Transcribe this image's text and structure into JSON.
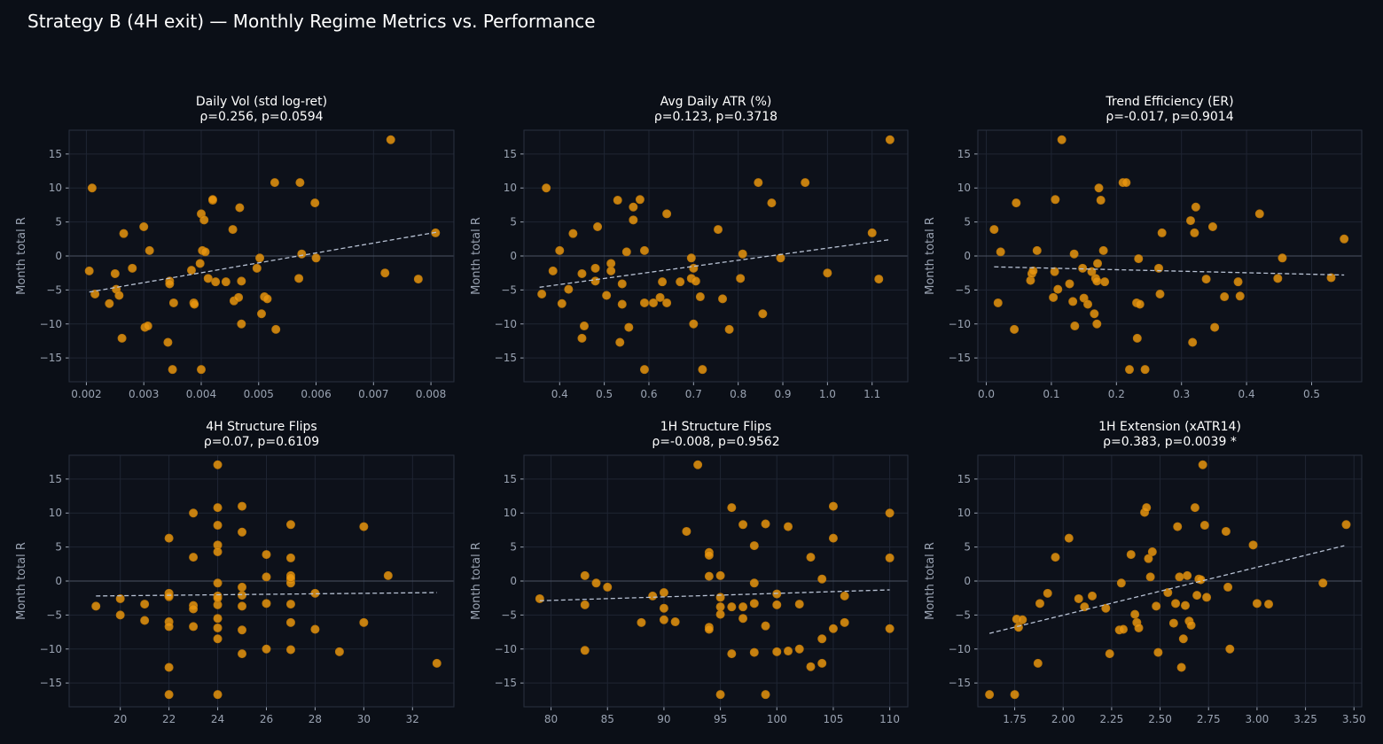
{
  "suptitle": "Strategy B (4H exit) — Monthly Regime Metrics vs. Performance",
  "colors": {
    "background": "#0b0f17",
    "axes_face": "#0d111a",
    "grid": "#1f2533",
    "spine": "#2a3140",
    "tick_text": "#9aa3b2",
    "title_text": "#ffffff",
    "point": "#e8950f",
    "trend_line": "#b8c2d4",
    "zero_line": "#4a5262"
  },
  "chart_data": [
    {
      "type": "scatter",
      "title": "Daily Vol (std log-ret)",
      "subtitle": "ρ=0.256, p=0.0594",
      "xlabel": "",
      "ylabel": "Month total R",
      "xlim": [
        0.0017,
        0.0084
      ],
      "ylim": [
        -18.5,
        18.5
      ],
      "xticks": [
        0.002,
        0.003,
        0.004,
        0.005,
        0.006,
        0.007,
        0.008
      ],
      "xtick_labels": [
        "0.002",
        "0.003",
        "0.004",
        "0.005",
        "0.006",
        "0.007",
        "0.008"
      ],
      "yticks": [
        -15,
        -10,
        -5,
        0,
        5,
        10,
        15
      ],
      "ytick_labels": [
        "−15",
        "−10",
        "−5",
        "0",
        "5",
        "10",
        "15"
      ],
      "trend_line": {
        "x": [
          0.00205,
          0.0081
        ],
        "y": [
          -5.3,
          3.5
        ]
      },
      "x": [
        0.0021,
        0.00205,
        0.00215,
        0.0024,
        0.0025,
        0.00252,
        0.00257,
        0.00262,
        0.00265,
        0.0028,
        0.003,
        0.00302,
        0.00307,
        0.0031,
        0.00342,
        0.00345,
        0.00345,
        0.0035,
        0.00352,
        0.00383,
        0.00387,
        0.00388,
        0.00398,
        0.004,
        0.004,
        0.00402,
        0.00405,
        0.00407,
        0.00412,
        0.0042,
        0.0042,
        0.00425,
        0.00443,
        0.00455,
        0.00457,
        0.00465,
        0.00467,
        0.0047,
        0.0047,
        0.00497,
        0.00502,
        0.00505,
        0.0051,
        0.00515,
        0.00528,
        0.0053,
        0.0057,
        0.00572,
        0.00575,
        0.00598,
        0.006,
        0.0072,
        0.0073,
        0.00778,
        0.00808
      ],
      "y": [
        10,
        -2.2,
        -5.6,
        -7,
        -2.6,
        -4.9,
        -5.8,
        -12.1,
        3.3,
        -1.8,
        4.3,
        -10.5,
        -10.3,
        0.8,
        -12.7,
        -3.7,
        -4.1,
        -16.7,
        -6.9,
        -2.1,
        -6.9,
        -7.1,
        -1.1,
        -16.7,
        6.2,
        0.8,
        5.3,
        0.6,
        -3.3,
        8.2,
        8.3,
        -3.8,
        -3.8,
        3.9,
        -6.6,
        -6.1,
        7.1,
        -10,
        -3.7,
        -1.8,
        -0.3,
        -8.5,
        -6,
        -6.3,
        10.8,
        -10.8,
        -3.3,
        10.8,
        0.3,
        7.8,
        -0.3,
        -2.5,
        17.1,
        -3.4,
        3.4
      ]
    },
    {
      "type": "scatter",
      "title": "Avg Daily ATR (%)",
      "subtitle": "ρ=0.123, p=0.3718",
      "xlabel": "",
      "ylabel": "Month total R",
      "xlim": [
        0.32,
        1.18
      ],
      "ylim": [
        -18.5,
        18.5
      ],
      "xticks": [
        0.4,
        0.5,
        0.6,
        0.7,
        0.8,
        0.9,
        1.0,
        1.1
      ],
      "xtick_labels": [
        "0.4",
        "0.5",
        "0.6",
        "0.7",
        "0.8",
        "0.9",
        "1.0",
        "1.1"
      ],
      "yticks": [
        -15,
        -10,
        -5,
        0,
        5,
        10,
        15
      ],
      "ytick_labels": [
        "−15",
        "−10",
        "−5",
        "0",
        "5",
        "10",
        "15"
      ],
      "trend_line": {
        "x": [
          0.355,
          1.14
        ],
        "y": [
          -4.6,
          2.4
        ]
      },
      "x": [
        0.36,
        0.37,
        0.385,
        0.4,
        0.405,
        0.42,
        0.43,
        0.45,
        0.45,
        0.455,
        0.48,
        0.48,
        0.485,
        0.505,
        0.515,
        0.515,
        0.53,
        0.535,
        0.54,
        0.54,
        0.55,
        0.555,
        0.565,
        0.565,
        0.58,
        0.59,
        0.59,
        0.59,
        0.61,
        0.625,
        0.63,
        0.64,
        0.64,
        0.67,
        0.695,
        0.695,
        0.7,
        0.7,
        0.705,
        0.715,
        0.72,
        0.755,
        0.765,
        0.78,
        0.805,
        0.81,
        0.845,
        0.855,
        0.875,
        0.895,
        0.95,
        1.0,
        1.1,
        1.115,
        1.14
      ],
      "y": [
        -5.6,
        10,
        -2.2,
        0.8,
        -7,
        -4.9,
        3.3,
        -12.1,
        -2.6,
        -10.3,
        -1.8,
        -3.7,
        4.3,
        -5.8,
        -1.1,
        -2.2,
        8.2,
        -12.7,
        -7.1,
        -4.1,
        0.6,
        -10.5,
        5.3,
        7.2,
        8.3,
        0.8,
        -6.9,
        -16.7,
        -6.9,
        -6.1,
        -3.8,
        -6.9,
        6.2,
        -3.8,
        -0.3,
        -3.3,
        -10,
        -1.8,
        -3.7,
        -6,
        -16.7,
        3.9,
        -6.3,
        -10.8,
        -3.3,
        0.3,
        10.8,
        -8.5,
        7.8,
        -0.3,
        10.8,
        -2.5,
        3.4,
        -3.4,
        17.1
      ]
    },
    {
      "type": "scatter",
      "title": "Trend Efficiency (ER)",
      "subtitle": "ρ=-0.017, p=0.9014",
      "xlabel": "",
      "ylabel": "Month total R",
      "xlim": [
        -0.013,
        0.577
      ],
      "ylim": [
        -18.5,
        18.5
      ],
      "xticks": [
        0.0,
        0.1,
        0.2,
        0.3,
        0.4,
        0.5
      ],
      "xtick_labels": [
        "0.0",
        "0.1",
        "0.2",
        "0.3",
        "0.4",
        "0.5"
      ],
      "yticks": [
        -15,
        -10,
        -5,
        0,
        5,
        10,
        15
      ],
      "ytick_labels": [
        "−15",
        "−10",
        "−5",
        "0",
        "5",
        "10",
        "15"
      ],
      "trend_line": {
        "x": [
          0.012,
          0.55
        ],
        "y": [
          -1.6,
          -2.8
        ]
      },
      "x": [
        0.012,
        0.018,
        0.022,
        0.043,
        0.046,
        0.068,
        0.07,
        0.072,
        0.078,
        0.103,
        0.105,
        0.106,
        0.11,
        0.116,
        0.128,
        0.133,
        0.135,
        0.136,
        0.148,
        0.15,
        0.156,
        0.162,
        0.166,
        0.168,
        0.17,
        0.17,
        0.171,
        0.173,
        0.176,
        0.18,
        0.182,
        0.21,
        0.215,
        0.22,
        0.231,
        0.232,
        0.234,
        0.236,
        0.244,
        0.265,
        0.267,
        0.27,
        0.314,
        0.317,
        0.32,
        0.322,
        0.338,
        0.348,
        0.351,
        0.366,
        0.387,
        0.39,
        0.42,
        0.448,
        0.455,
        0.53,
        0.55
      ],
      "y": [
        3.9,
        -6.9,
        0.6,
        -10.8,
        7.8,
        -3.6,
        -2.6,
        -2.2,
        0.8,
        -6.1,
        -2.3,
        8.3,
        -4.9,
        17.1,
        -4.1,
        -6.7,
        0.3,
        -10.3,
        -1.8,
        -6.2,
        -7.1,
        -2.3,
        -8.5,
        -3.3,
        -10,
        -3.7,
        -1.1,
        10,
        8.2,
        0.8,
        -3.8,
        10.8,
        10.8,
        -16.7,
        -6.9,
        -12.1,
        -0.4,
        -7.1,
        -16.7,
        -1.8,
        -5.6,
        3.4,
        5.2,
        -12.7,
        3.4,
        7.2,
        -3.4,
        4.3,
        -10.5,
        -6,
        -3.8,
        -5.9,
        6.2,
        -3.3,
        -0.3,
        -3.2,
        2.5
      ]
    },
    {
      "type": "scatter",
      "title": "4H Structure Flips",
      "subtitle": "ρ=0.07, p=0.6109",
      "xlabel": "",
      "ylabel": "Month total R",
      "xlim": [
        17.9,
        33.7
      ],
      "ylim": [
        -18.5,
        18.5
      ],
      "xticks": [
        20,
        22,
        24,
        26,
        28,
        30,
        32
      ],
      "xtick_labels": [
        "20",
        "22",
        "24",
        "26",
        "28",
        "30",
        "32"
      ],
      "yticks": [
        -15,
        -10,
        -5,
        0,
        5,
        10,
        15
      ],
      "ytick_labels": [
        "−15",
        "−10",
        "−5",
        "0",
        "5",
        "10",
        "15"
      ],
      "trend_line": {
        "x": [
          19,
          33
        ],
        "y": [
          -2.2,
          -1.7
        ]
      },
      "x": [
        19,
        20,
        20,
        21,
        21,
        22,
        22,
        22,
        22,
        22,
        22,
        22,
        22,
        23,
        23,
        23,
        23,
        23,
        24,
        24,
        24,
        24,
        24,
        24,
        24,
        24,
        24,
        24,
        24,
        24,
        24,
        25,
        25,
        25,
        25,
        25,
        25,
        25,
        26,
        26,
        26,
        26,
        27,
        27,
        27,
        27,
        27,
        27,
        27,
        27,
        27,
        28,
        28,
        29,
        30,
        30,
        31,
        33
      ],
      "y": [
        -3.7,
        -5,
        -2.6,
        -3.4,
        -5.8,
        6.3,
        -1.8,
        -2.3,
        -6,
        -6.7,
        -12.7,
        -16.7,
        -2.2,
        10,
        3.5,
        -3.6,
        -4.1,
        -6.7,
        17.1,
        10.8,
        8.2,
        5.3,
        4.3,
        -0.3,
        -2.2,
        -3.5,
        -5.5,
        -6.9,
        -8.5,
        -16.7,
        -2.5,
        11,
        7.2,
        -0.9,
        -2.1,
        -3.7,
        -7.2,
        -10.7,
        3.9,
        0.6,
        -3.3,
        -10,
        8.3,
        3.4,
        0.8,
        0.3,
        -0.3,
        -3.4,
        -6.1,
        -10.1,
        0.5,
        -1.8,
        -7.1,
        -10.4,
        8,
        -6.1,
        0.8,
        -12.1
      ]
    },
    {
      "type": "scatter",
      "title": "1H Structure Flips",
      "subtitle": "ρ=-0.008, p=0.9562",
      "xlabel": "",
      "ylabel": "Month total R",
      "xlim": [
        77.6,
        111.6
      ],
      "ylim": [
        -18.5,
        18.5
      ],
      "xticks": [
        80,
        85,
        90,
        95,
        100,
        105,
        110
      ],
      "xtick_labels": [
        "80",
        "85",
        "90",
        "95",
        "100",
        "105",
        "110"
      ],
      "yticks": [
        -15,
        -10,
        -5,
        0,
        5,
        10,
        15
      ],
      "ytick_labels": [
        "−15",
        "−10",
        "−5",
        "0",
        "5",
        "10",
        "15"
      ],
      "trend_line": {
        "x": [
          79,
          110
        ],
        "y": [
          -2.9,
          -1.3
        ]
      },
      "x": [
        79,
        83,
        83,
        83,
        84,
        85,
        88,
        89,
        90,
        90,
        90,
        91,
        92,
        93,
        94,
        94,
        94,
        94,
        94,
        95,
        95,
        95,
        95,
        95,
        96,
        96,
        96,
        97,
        97,
        97,
        98,
        98,
        98,
        98,
        99,
        99,
        99,
        100,
        100,
        100,
        101,
        101,
        102,
        102,
        103,
        103,
        104,
        104,
        104,
        105,
        105,
        105,
        106,
        106,
        110,
        110,
        110
      ],
      "y": [
        -2.6,
        0.8,
        -3.5,
        -10.2,
        -0.3,
        -0.9,
        -6.1,
        -2.2,
        -1.7,
        -4,
        -5.7,
        -6,
        7.3,
        17.1,
        -6.8,
        4.2,
        3.8,
        0.7,
        -7.1,
        -16.7,
        0.8,
        -2.4,
        -3.8,
        -4.9,
        10.8,
        -3.8,
        -10.7,
        8.3,
        -3.8,
        -5.5,
        5.2,
        -0.3,
        -3.3,
        -10.5,
        8.4,
        -6.6,
        -16.7,
        -1.9,
        -3.5,
        -10.4,
        8,
        -10.3,
        -10,
        -3.4,
        3.5,
        -12.6,
        0.3,
        -8.5,
        -12.1,
        11,
        6.3,
        -7,
        -2.2,
        -6.1,
        10,
        3.4,
        -7
      ]
    },
    {
      "type": "scatter",
      "title": "1H Extension (xATR14)",
      "subtitle": "ρ=0.383, p=0.0039 *",
      "xlabel": "",
      "ylabel": "Month total R",
      "xlim": [
        1.56,
        3.54
      ],
      "ylim": [
        -18.5,
        18.5
      ],
      "xticks": [
        1.75,
        2.0,
        2.25,
        2.5,
        2.75,
        3.0,
        3.25,
        3.5
      ],
      "xtick_labels": [
        "1.75",
        "2.00",
        "2.25",
        "2.50",
        "2.75",
        "3.00",
        "3.25",
        "3.50"
      ],
      "yticks": [
        -15,
        -10,
        -5,
        0,
        5,
        10,
        15
      ],
      "ytick_labels": [
        "−15",
        "−10",
        "−5",
        "0",
        "5",
        "10",
        "15"
      ],
      "trend_line": {
        "x": [
          1.62,
          3.45
        ],
        "y": [
          -7.7,
          5.2
        ]
      },
      "x": [
        1.62,
        1.75,
        1.76,
        1.77,
        1.79,
        1.87,
        1.88,
        1.92,
        1.96,
        2.03,
        2.08,
        2.11,
        2.15,
        2.22,
        2.24,
        2.29,
        2.3,
        2.31,
        2.35,
        2.37,
        2.38,
        2.39,
        2.42,
        2.43,
        2.44,
        2.45,
        2.46,
        2.48,
        2.49,
        2.54,
        2.57,
        2.58,
        2.59,
        2.61,
        2.62,
        2.63,
        2.64,
        2.65,
        2.66,
        2.68,
        2.69,
        2.7,
        2.72,
        2.73,
        2.74,
        2.84,
        2.85,
        2.86,
        2.98,
        3.0,
        3.06,
        3.34,
        3.46,
        2.71,
        2.6
      ],
      "y": [
        -16.7,
        -16.7,
        -5.6,
        -6.8,
        -5.7,
        -12.1,
        -3.3,
        -1.8,
        3.5,
        6.3,
        -2.6,
        -3.8,
        -2.2,
        -4,
        -10.7,
        -7.2,
        -0.3,
        -7.1,
        3.9,
        -4.9,
        -6.1,
        -6.9,
        10.1,
        10.8,
        3.3,
        0.6,
        4.3,
        -3.7,
        -10.5,
        -1.7,
        -6.2,
        -3.3,
        8,
        -12.7,
        -8.5,
        -3.6,
        0.8,
        -5.9,
        -6.5,
        10.8,
        -2.1,
        0.3,
        17.1,
        8.2,
        -2.4,
        7.3,
        -0.9,
        -10,
        5.3,
        -3.3,
        -3.4,
        -0.3,
        8.3,
        0.2,
        0.6
      ]
    }
  ]
}
